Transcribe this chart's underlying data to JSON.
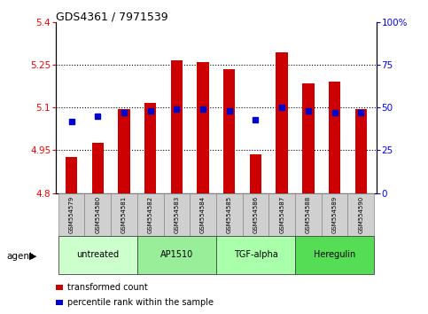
{
  "title": "GDS4361 / 7971539",
  "samples": [
    "GSM554579",
    "GSM554580",
    "GSM554581",
    "GSM554582",
    "GSM554583",
    "GSM554584",
    "GSM554585",
    "GSM554586",
    "GSM554587",
    "GSM554588",
    "GSM554589",
    "GSM554590"
  ],
  "transformed_count": [
    4.928,
    4.975,
    5.095,
    5.115,
    5.265,
    5.26,
    5.235,
    4.937,
    5.295,
    5.185,
    5.19,
    5.095
  ],
  "percentile_rank": [
    42,
    45,
    47,
    48,
    49,
    49,
    48,
    43,
    50,
    48,
    47,
    47
  ],
  "groups": [
    {
      "label": "untreated",
      "start": 0,
      "end": 3,
      "color": "#ccffcc"
    },
    {
      "label": "AP1510",
      "start": 3,
      "end": 6,
      "color": "#99ee99"
    },
    {
      "label": "TGF-alpha",
      "start": 6,
      "end": 9,
      "color": "#aaffaa"
    },
    {
      "label": "Heregulin",
      "start": 9,
      "end": 12,
      "color": "#55dd55"
    }
  ],
  "ylim_left": [
    4.8,
    5.4
  ],
  "ylim_right": [
    0,
    100
  ],
  "yticks_left": [
    4.8,
    4.95,
    5.1,
    5.25,
    5.4
  ],
  "yticks_right": [
    0,
    25,
    50,
    75,
    100
  ],
  "ytick_labels_left": [
    "4.8",
    "4.95",
    "5.1",
    "5.25",
    "5.4"
  ],
  "ytick_labels_right": [
    "0",
    "25",
    "50",
    "75",
    "100%"
  ],
  "bar_color": "#cc0000",
  "bar_width": 0.45,
  "marker_color": "#0000cc",
  "marker_size": 5,
  "baseline": 4.8,
  "sample_box_color": "#d0d0d0",
  "grid_yticks": [
    4.95,
    5.1,
    5.25
  ],
  "legend_items": [
    {
      "color": "#cc0000",
      "label": "transformed count"
    },
    {
      "color": "#0000cc",
      "label": "percentile rank within the sample"
    }
  ]
}
